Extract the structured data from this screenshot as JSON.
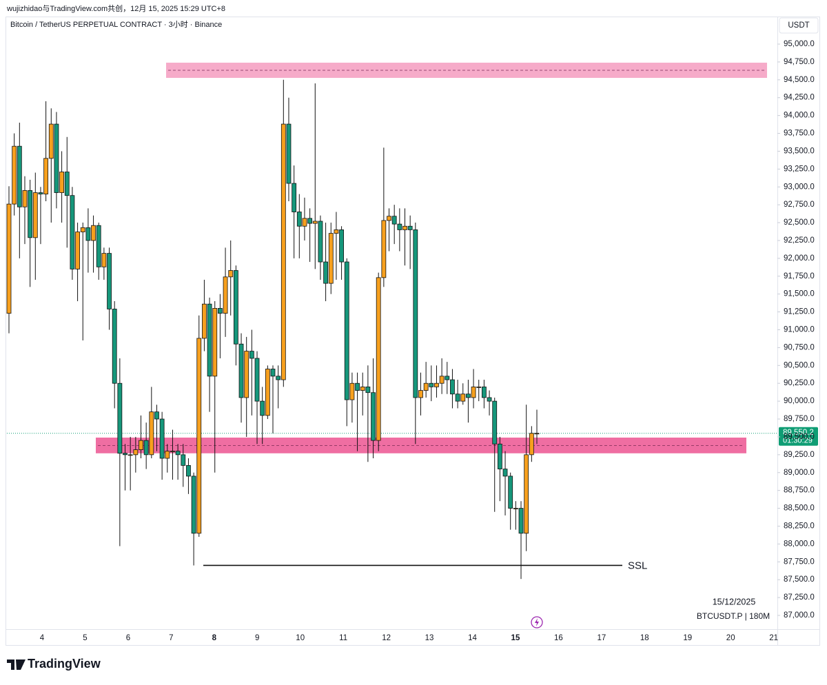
{
  "chart_data": {
    "type": "candlestick",
    "credit": "wujizhidao与TradingView.com共创，12月 15, 2025 15:29 UTC+8",
    "title": "Bitcoin / TetherUS PERPETUAL CONTRACT · 3小时 · Binance",
    "y_unit": "USDT",
    "date_label": "15/12/2025",
    "symbol_label": "BTCUSDT.P | 180M",
    "source": "TradingView",
    "up_color": "#f7a01e",
    "down_color": "#16977b",
    "ylim": [
      86807,
      95386
    ],
    "yticks": [
      {
        "value": 87000,
        "label": "87,000.0"
      },
      {
        "value": 87250,
        "label": "87,250.0"
      },
      {
        "value": 87500,
        "label": "87,500.0"
      },
      {
        "value": 87750,
        "label": "87,750.0"
      },
      {
        "value": 88000,
        "label": "88,000.0"
      },
      {
        "value": 88250,
        "label": "88,250.0"
      },
      {
        "value": 88500,
        "label": "88,500.0"
      },
      {
        "value": 88750,
        "label": "88,750.0"
      },
      {
        "value": 89000,
        "label": "89,000.0"
      },
      {
        "value": 89250,
        "label": "89,250.0"
      },
      {
        "value": 89500,
        "label": "89,500.0"
      },
      {
        "value": 89750,
        "label": "89,750.0"
      },
      {
        "value": 90000,
        "label": "90,000.0"
      },
      {
        "value": 90250,
        "label": "90,250.0"
      },
      {
        "value": 90500,
        "label": "90,500.0"
      },
      {
        "value": 90750,
        "label": "90,750.0"
      },
      {
        "value": 91000,
        "label": "91,000.0"
      },
      {
        "value": 91250,
        "label": "91,250.0"
      },
      {
        "value": 91500,
        "label": "91,500.0"
      },
      {
        "value": 91750,
        "label": "91,750.0"
      },
      {
        "value": 92000,
        "label": "92,000.0"
      },
      {
        "value": 92250,
        "label": "92,250.0"
      },
      {
        "value": 92500,
        "label": "92,500.0"
      },
      {
        "value": 92750,
        "label": "92,750.0"
      },
      {
        "value": 93000,
        "label": "93,000.0"
      },
      {
        "value": 93250,
        "label": "93,250.0"
      },
      {
        "value": 93500,
        "label": "93,500.0"
      },
      {
        "value": 93750,
        "label": "93,750.0"
      },
      {
        "value": 94000,
        "label": "94,000.0"
      },
      {
        "value": 94250,
        "label": "94,250.0"
      },
      {
        "value": 94500,
        "label": "94,500.0"
      },
      {
        "value": 94750,
        "label": "94,750.0"
      },
      {
        "value": 95000,
        "label": "95,000.0"
      }
    ],
    "xticks": [
      "4",
      "5",
      "6",
      "7",
      "8",
      "9",
      "10",
      "11",
      "12",
      "13",
      "14",
      "15",
      "16",
      "17",
      "18",
      "19",
      "20",
      "21"
    ],
    "open": [
      91230,
      92760,
      93570,
      92720,
      92950,
      92290,
      92920,
      92900,
      93400,
      93880,
      92920,
      93210,
      92880,
      91850,
      92370,
      92430,
      92250,
      92460,
      91880,
      92070,
      91290,
      90250,
      89270,
      89250,
      89250,
      89320,
      89450,
      89250,
      89850,
      89750,
      89200,
      89300,
      89300,
      89250,
      89100,
      88950,
      88150,
      90880,
      91360,
      90350,
      91300,
      91230,
      91740,
      91830,
      90800,
      90050,
      90700,
      90600,
      90000,
      89800,
      90450,
      90350,
      90300,
      93880,
      93050,
      92650,
      92450,
      92560,
      92490,
      92520,
      91950,
      91650,
      92350,
      92400,
      91950,
      90020,
      90250,
      90150,
      90200,
      90120,
      89450,
      91730,
      92530,
      92590,
      92480,
      92400,
      92450,
      92400,
      90050,
      90150,
      90250,
      90200,
      90250,
      90350,
      90300,
      90100,
      90000,
      90100,
      90050,
      90200,
      90200,
      90050,
      90000,
      89400,
      89050,
      88950,
      88500,
      88500,
      88150,
      89250,
      89550
    ],
    "high": [
      93010,
      93750,
      93900,
      93150,
      93100,
      93200,
      93000,
      94200,
      94100,
      94050,
      93500,
      93700,
      93000,
      92500,
      92500,
      92700,
      92600,
      92500,
      92150,
      92150,
      91400,
      90600,
      89400,
      89500,
      89500,
      89800,
      89700,
      90200,
      89950,
      89850,
      89400,
      89600,
      89400,
      89400,
      89200,
      89000,
      91200,
      91700,
      91450,
      91400,
      91500,
      92150,
      92250,
      91900,
      90950,
      90900,
      91000,
      90700,
      90200,
      90500,
      90500,
      90500,
      94500,
      94250,
      93300,
      92900,
      92850,
      92700,
      94450,
      92600,
      92500,
      92500,
      92650,
      92450,
      92000,
      90400,
      90400,
      90400,
      90500,
      90600,
      91800,
      93550,
      92700,
      92750,
      92700,
      92700,
      92600,
      92500,
      90400,
      90550,
      90500,
      90500,
      90600,
      90550,
      90450,
      90300,
      90250,
      90300,
      90450,
      90300,
      90300,
      90150,
      90050,
      89500,
      89300,
      89000,
      88600,
      88600,
      89950,
      89650,
      89880
    ],
    "low": [
      90950,
      92600,
      92000,
      92200,
      91600,
      91700,
      92200,
      92800,
      92500,
      92700,
      92500,
      92150,
      91700,
      91400,
      90850,
      91800,
      91800,
      91700,
      91700,
      91000,
      89900,
      87970,
      88750,
      88750,
      89000,
      89200,
      89050,
      89200,
      89300,
      88900,
      89000,
      88900,
      88900,
      88800,
      88700,
      87700,
      88100,
      90700,
      89850,
      89000,
      90600,
      90900,
      91200,
      90500,
      89700,
      89500,
      89800,
      89400,
      89400,
      89750,
      89550,
      89900,
      90200,
      92800,
      92000,
      92000,
      92250,
      91950,
      91850,
      91700,
      91400,
      91500,
      91700,
      91700,
      89650,
      89700,
      89300,
      89800,
      89150,
      89200,
      89300,
      91600,
      92100,
      92200,
      92100,
      91900,
      91850,
      89400,
      89800,
      90050,
      90000,
      90050,
      90100,
      90100,
      89900,
      89900,
      89950,
      89700,
      89900,
      90000,
      89900,
      89800,
      88450,
      88600,
      88400,
      88200,
      88200,
      87510,
      87900,
      89150,
      89400
    ],
    "close": [
      92760,
      93570,
      92720,
      92950,
      92290,
      92920,
      92900,
      93400,
      93880,
      92920,
      93210,
      92880,
      91850,
      92370,
      92430,
      92250,
      92460,
      91880,
      92070,
      91290,
      90250,
      89270,
      89250,
      89250,
      89320,
      89450,
      89250,
      89850,
      89750,
      89200,
      89300,
      89300,
      89250,
      89100,
      88950,
      88150,
      90880,
      91360,
      90350,
      91300,
      91230,
      91740,
      91830,
      90800,
      90050,
      90700,
      90600,
      90000,
      89800,
      90450,
      90350,
      90300,
      93880,
      93050,
      92650,
      92450,
      92560,
      92490,
      92520,
      91950,
      91650,
      92350,
      92400,
      91950,
      90020,
      90250,
      90150,
      90200,
      90120,
      89450,
      91730,
      92530,
      92590,
      92480,
      92400,
      92450,
      92400,
      90050,
      90150,
      90250,
      90200,
      90250,
      90350,
      90300,
      90100,
      90000,
      90100,
      90050,
      90200,
      90200,
      90050,
      90000,
      89400,
      89050,
      88950,
      88500,
      88500,
      88150,
      89250,
      89550,
      89550.2
    ],
    "zones": [
      {
        "ymin": 94527,
        "ymax": 94740,
        "color": "#f6abc9"
      },
      {
        "ymin": 89270,
        "ymax": 89490,
        "color": "#ef6ea2"
      }
    ],
    "levels": [
      {
        "value": 87700,
        "label": "SSL"
      }
    ],
    "price_line": {
      "value": 89550.2,
      "label": "89,550.2",
      "countdown": "01:30:29",
      "color": "#0f9d74"
    }
  }
}
